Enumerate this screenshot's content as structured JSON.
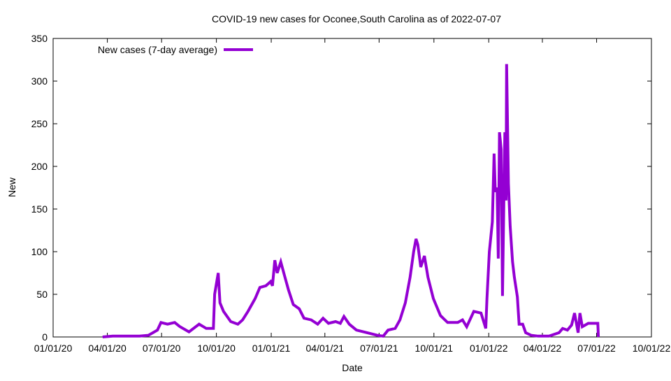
{
  "chart_data": {
    "type": "line",
    "title": "COVID-19 new cases for Oconee,South Carolina as of 2022-07-07",
    "xlabel": "Date",
    "ylabel": "New",
    "x_units": "days since 2020-01-01",
    "xlim": [
      0,
      1004
    ],
    "ylim": [
      0,
      350
    ],
    "yticks": [
      0,
      50,
      100,
      150,
      200,
      250,
      300,
      350
    ],
    "xticks": [
      {
        "day": 0,
        "label": "01/01/20"
      },
      {
        "day": 91,
        "label": "04/01/20"
      },
      {
        "day": 182,
        "label": "07/01/20"
      },
      {
        "day": 274,
        "label": "10/01/20"
      },
      {
        "day": 366,
        "label": "01/01/21"
      },
      {
        "day": 456,
        "label": "04/01/21"
      },
      {
        "day": 547,
        "label": "07/01/21"
      },
      {
        "day": 639,
        "label": "10/01/21"
      },
      {
        "day": 731,
        "label": "01/01/22"
      },
      {
        "day": 821,
        "label": "04/01/22"
      },
      {
        "day": 912,
        "label": "07/01/22"
      },
      {
        "day": 1004,
        "label": "10/01/22"
      }
    ],
    "grid": false,
    "legend_position": "top-left",
    "series": [
      {
        "name": "New cases (7-day average)",
        "color": "#9400d3",
        "x": [
          83,
          100,
          120,
          145,
          160,
          175,
          181,
          192,
          204,
          213,
          228,
          245,
          257,
          269,
          271,
          277,
          280,
          286,
          298,
          310,
          318,
          327,
          339,
          347,
          357,
          365,
          368,
          372,
          376,
          382,
          389,
          395,
          403,
          413,
          421,
          433,
          444,
          453,
          462,
          474,
          482,
          488,
          497,
          509,
          527,
          544,
          554,
          562,
          574,
          582,
          591,
          599,
          605,
          609,
          612,
          617,
          623,
          629,
          638,
          650,
          662,
          679,
          687,
          694,
          706,
          718,
          726,
          728,
          732,
          737,
          740,
          742,
          745,
          747,
          749,
          752,
          754,
          758,
          760,
          761,
          764,
          767,
          771,
          774,
          779,
          782,
          788,
          793,
          802,
          814,
          832,
          849,
          855,
          863,
          870,
          875,
          881,
          884,
          888,
          898,
          914,
          915
        ],
        "y": [
          0,
          1,
          1,
          1,
          2,
          8,
          17,
          15,
          17,
          12,
          6,
          15,
          10,
          10,
          50,
          75,
          40,
          30,
          18,
          15,
          20,
          30,
          45,
          58,
          60,
          65,
          60,
          90,
          75,
          88,
          70,
          55,
          38,
          33,
          22,
          20,
          15,
          22,
          16,
          18,
          16,
          24,
          15,
          8,
          5,
          2,
          1,
          8,
          10,
          20,
          40,
          70,
          100,
          115,
          108,
          82,
          95,
          70,
          45,
          25,
          17,
          17,
          20,
          12,
          30,
          28,
          10,
          45,
          100,
          135,
          215,
          170,
          175,
          92,
          240,
          220,
          48,
          240,
          160,
          320,
          180,
          130,
          88,
          70,
          47,
          15,
          15,
          5,
          2,
          1,
          1,
          5,
          10,
          8,
          14,
          28,
          5,
          28,
          12,
          16,
          16,
          0
        ]
      }
    ]
  }
}
